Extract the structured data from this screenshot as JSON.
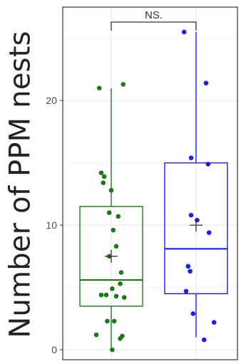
{
  "chart_data": {
    "type": "box",
    "ylabel": "Number of PPM nests",
    "xlabel": "",
    "ylim": [
      -0.8,
      27.5
    ],
    "yticks": [
      0,
      10,
      20
    ],
    "grid": true,
    "significance": {
      "label": "NS.",
      "between": [
        0,
        1
      ]
    },
    "groups": [
      {
        "color": "#1a7a1a",
        "box": {
          "q1": 3.5,
          "median": 5.6,
          "q3": 11.5,
          "whisker_low": 0,
          "whisker_high": 21,
          "mean": 7.5
        },
        "points": [
          {
            "x": -0.12,
            "y": 21.0
          },
          {
            "x": 0.12,
            "y": 21.3
          },
          {
            "x": -0.1,
            "y": 14.2
          },
          {
            "x": -0.07,
            "y": 13.9
          },
          {
            "x": -0.08,
            "y": 13.4
          },
          {
            "x": 0.0,
            "y": 12.8
          },
          {
            "x": -0.02,
            "y": 11.0
          },
          {
            "x": 0.07,
            "y": 10.7
          },
          {
            "x": 0.02,
            "y": 9.6
          },
          {
            "x": 0.05,
            "y": 8.3
          },
          {
            "x": -0.02,
            "y": 7.5
          },
          {
            "x": 0.1,
            "y": 6.2
          },
          {
            "x": 0.09,
            "y": 5.3
          },
          {
            "x": 0.01,
            "y": 4.9
          },
          {
            "x": -0.1,
            "y": 4.4
          },
          {
            "x": -0.05,
            "y": 4.4
          },
          {
            "x": 0.05,
            "y": 4.3
          },
          {
            "x": 0.13,
            "y": 4.2
          },
          {
            "x": -0.04,
            "y": 2.3
          },
          {
            "x": 0.03,
            "y": 2.3
          },
          {
            "x": -0.15,
            "y": 1.2
          },
          {
            "x": 0.11,
            "y": 1.1
          },
          {
            "x": 0.09,
            "y": 0.9
          },
          {
            "x": 0.01,
            "y": 0.0
          }
        ]
      },
      {
        "color": "#1c1cff",
        "box": {
          "q1": 4.5,
          "median": 8.1,
          "q3": 15.0,
          "whisker_low": 1.0,
          "whisker_high": 25.5,
          "mean": 10.0
        },
        "points": [
          {
            "x": -0.12,
            "y": 25.5
          },
          {
            "x": 0.1,
            "y": 21.4
          },
          {
            "x": -0.05,
            "y": 15.4
          },
          {
            "x": 0.12,
            "y": 14.9
          },
          {
            "x": -0.05,
            "y": 10.8
          },
          {
            "x": 0.01,
            "y": 10.4
          },
          {
            "x": 0.13,
            "y": 9.4
          },
          {
            "x": -0.08,
            "y": 6.7
          },
          {
            "x": -0.06,
            "y": 6.3
          },
          {
            "x": -0.1,
            "y": 4.7
          },
          {
            "x": -0.03,
            "y": 2.9
          },
          {
            "x": 0.18,
            "y": 2.2
          },
          {
            "x": 0.08,
            "y": 0.8
          }
        ]
      }
    ]
  }
}
